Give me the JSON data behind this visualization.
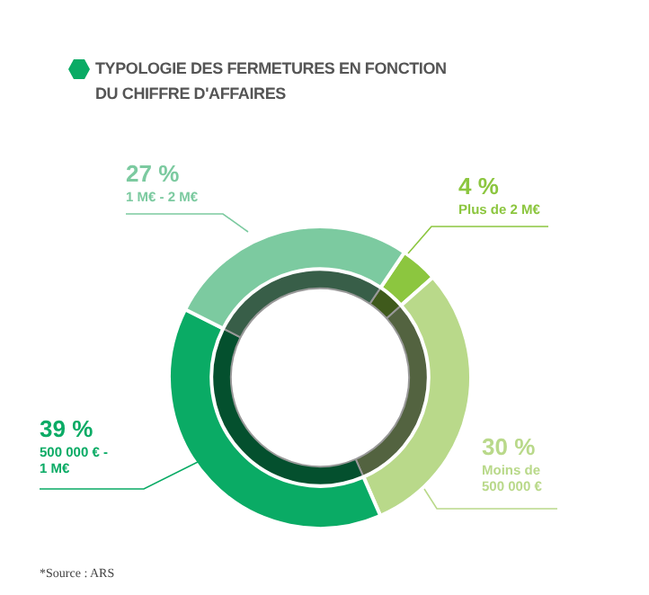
{
  "chart_data": {
    "type": "donut",
    "title": "TYPOLOGIE DES FERMETURES EN FONCTION DU CHIFFRE D'AFFAIRES",
    "categories": [
      "Plus de 2 M€",
      "Moins de 500 000 €",
      "500 000 € - 1 M€",
      "1 M€ - 2 M€"
    ],
    "series": [
      {
        "values": [
          4,
          30,
          39,
          27
        ],
        "value_labels": [
          "4 %",
          "30 %",
          "39 %",
          "27 %"
        ],
        "colors": [
          "#8cc63f",
          "#b9d98a",
          "#0aab65",
          "#7ccaa0"
        ]
      },
      {
        "values": [
          4,
          30,
          39,
          27
        ],
        "colors": [
          "#3f5a1c",
          "#536340",
          "#04502e",
          "#385e48"
        ]
      }
    ],
    "legend": false,
    "annotations": [
      "*Source : ARS"
    ]
  }
}
